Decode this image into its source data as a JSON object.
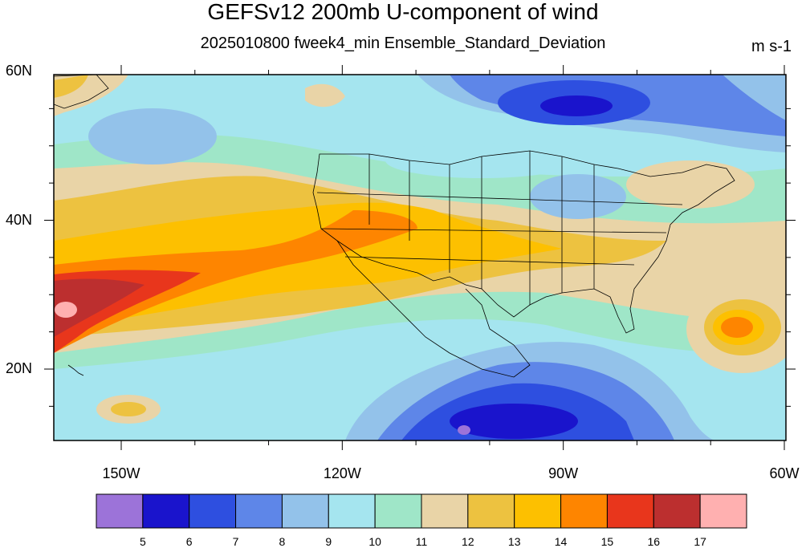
{
  "title": "GEFSv12 200mb U-component of wind",
  "subtitle": "2025010800 fweek4_min Ensemble_Standard_Deviation",
  "units": "m s-1",
  "map": {
    "lat_labels": [
      {
        "text": "60N",
        "lat": 60
      },
      {
        "text": "40N",
        "lat": 40
      },
      {
        "text": "20N",
        "lat": 20
      }
    ],
    "lon_labels": [
      {
        "text": "150W",
        "lon": -150
      },
      {
        "text": "120W",
        "lon": -120
      },
      {
        "text": "90W",
        "lon": -90
      },
      {
        "text": "60W",
        "lon": -60
      }
    ]
  },
  "colorbar": {
    "colors": [
      "#9c73d9",
      "#1a14cc",
      "#2e4fe0",
      "#5e86e8",
      "#93c2ea",
      "#a5e5ef",
      "#9fe6c8",
      "#e9d4a7",
      "#edc240",
      "#fdc000",
      "#fe8500",
      "#e8361c",
      "#bc2f2f",
      "#ffb0b0"
    ],
    "labels": [
      "5",
      "6",
      "7",
      "8",
      "9",
      "10",
      "11",
      "12",
      "13",
      "14",
      "15",
      "16",
      "17"
    ]
  }
}
